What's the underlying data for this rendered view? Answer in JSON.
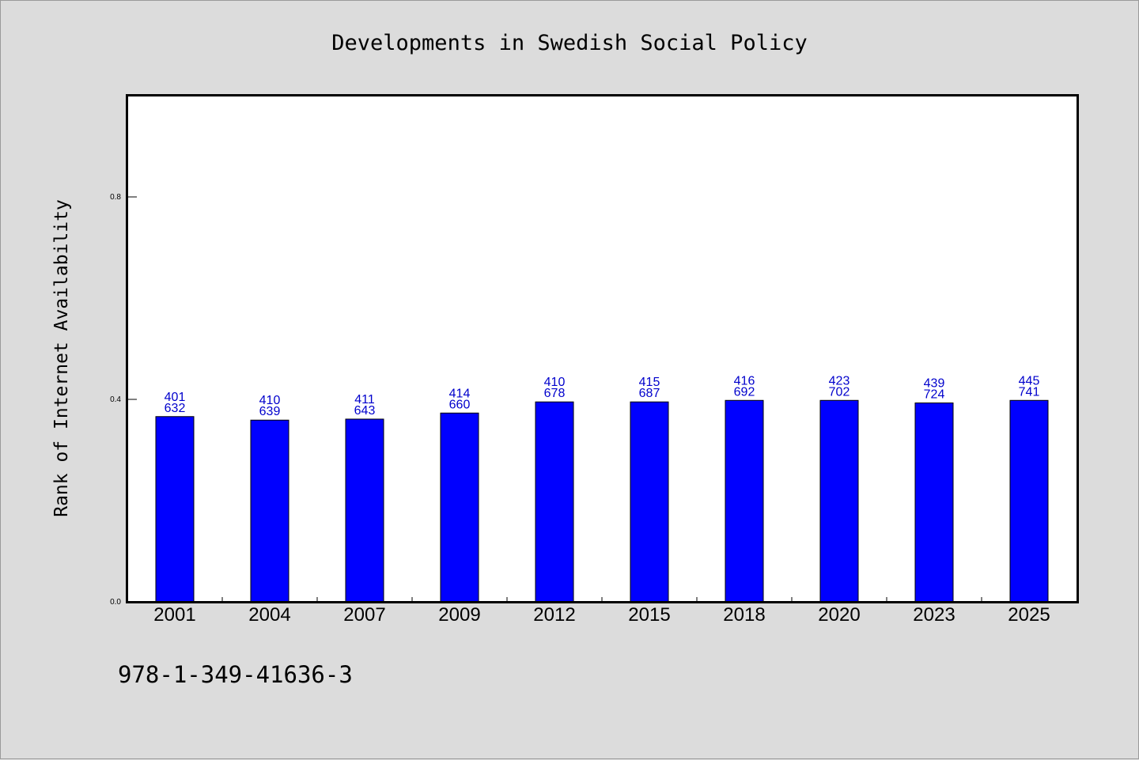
{
  "chart_data": {
    "type": "bar",
    "title": "Developments in Swedish Social Policy",
    "xlabel": "",
    "ylabel": "Rank of Internet Availability",
    "categories": [
      "2001",
      "2004",
      "2007",
      "2009",
      "2012",
      "2015",
      "2018",
      "2020",
      "2023",
      "2025"
    ],
    "values": [
      0.366,
      0.359,
      0.361,
      0.373,
      0.395,
      0.395,
      0.398,
      0.398,
      0.393,
      0.398
    ],
    "data_labels": [
      [
        "401",
        "632"
      ],
      [
        "410",
        "639"
      ],
      [
        "411",
        "643"
      ],
      [
        "414",
        "660"
      ],
      [
        "410",
        "678"
      ],
      [
        "415",
        "687"
      ],
      [
        "416",
        "692"
      ],
      [
        "423",
        "702"
      ],
      [
        "439",
        "724"
      ],
      [
        "445",
        "741"
      ]
    ],
    "ylim": [
      0,
      1.0
    ],
    "yticks": [
      "0.0",
      "0.4",
      "0.8"
    ],
    "grid": false,
    "legend": "none",
    "bar_color": "#0000ff",
    "label_color": "#0000cc",
    "background": "#dcdcdc",
    "plot_background": "#ffffff"
  },
  "footer": {
    "isbn": "978-1-349-41636-3"
  }
}
